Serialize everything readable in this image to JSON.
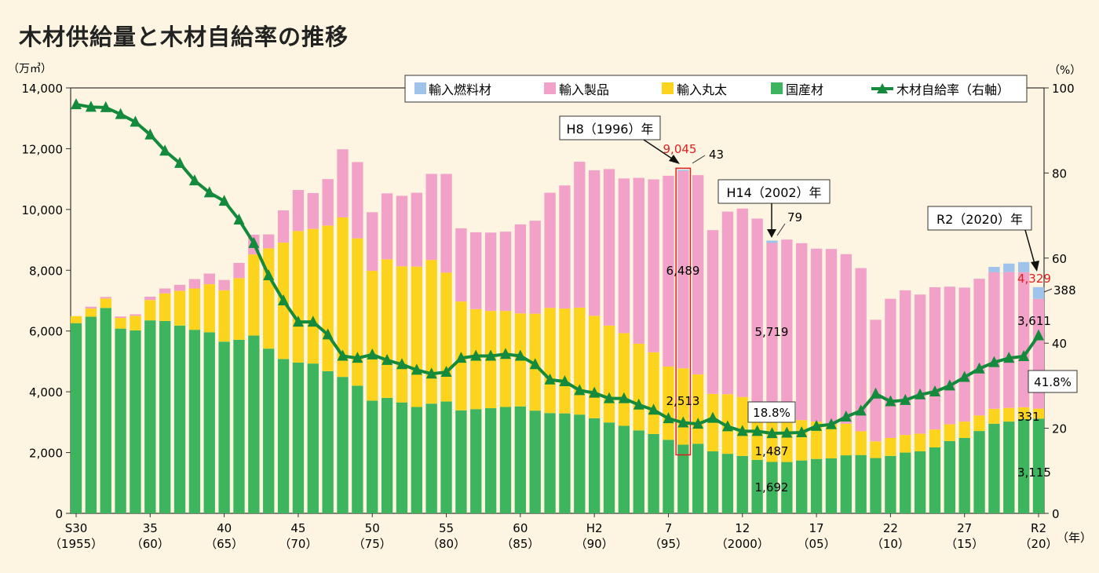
{
  "title": "木材供給量と木材自給率の推移",
  "chart_data": {
    "type": "bar",
    "title": "木材供給量と木材自給率の推移",
    "ylabel_left": "（万㎥）",
    "ylabel_right": "（%）",
    "xunit": "（年）",
    "ylim_left": [
      0,
      14000
    ],
    "ylim_right": [
      0,
      100
    ],
    "yticks_left": [
      "0",
      "2,000",
      "4,000",
      "6,000",
      "8,000",
      "10,000",
      "12,000",
      "14,000"
    ],
    "yticks_right": [
      "0",
      "20",
      "40",
      "60",
      "80",
      "100"
    ],
    "legend_position": "top-right",
    "legend": {
      "fuel": "輸入燃料材",
      "products": "輸入製品",
      "logs": "輸入丸太",
      "domestic": "国産材",
      "rate": "木材自給率（右軸）"
    },
    "colors": {
      "fuel": "#9fc3ea",
      "products": "#f2a2c8",
      "logs": "#fdd41d",
      "domestic": "#3db55e",
      "rate": "#138a3c",
      "highlight": "#e02020"
    },
    "years": [
      1955,
      1956,
      1957,
      1958,
      1959,
      1960,
      1961,
      1962,
      1963,
      1964,
      1965,
      1966,
      1967,
      1968,
      1969,
      1970,
      1971,
      1972,
      1973,
      1974,
      1975,
      1976,
      1977,
      1978,
      1979,
      1980,
      1981,
      1982,
      1983,
      1984,
      1985,
      1986,
      1987,
      1988,
      1989,
      1990,
      1991,
      1992,
      1993,
      1994,
      1995,
      1996,
      1997,
      1998,
      1999,
      2000,
      2001,
      2002,
      2003,
      2004,
      2005,
      2006,
      2007,
      2008,
      2009,
      2010,
      2011,
      2012,
      2013,
      2014,
      2015,
      2016,
      2017,
      2018,
      2019,
      2020
    ],
    "x_ticks": [
      {
        "year": 1955,
        "l1": "S30",
        "l2": "（1955）"
      },
      {
        "year": 1960,
        "l1": "35",
        "l2": "（60）"
      },
      {
        "year": 1965,
        "l1": "40",
        "l2": "（65）"
      },
      {
        "year": 1970,
        "l1": "45",
        "l2": "（70）"
      },
      {
        "year": 1975,
        "l1": "50",
        "l2": "（75）"
      },
      {
        "year": 1980,
        "l1": "55",
        "l2": "（80）"
      },
      {
        "year": 1985,
        "l1": "60",
        "l2": "（85）"
      },
      {
        "year": 1990,
        "l1": "H2",
        "l2": "（90）"
      },
      {
        "year": 1995,
        "l1": "7",
        "l2": "（95）"
      },
      {
        "year": 2000,
        "l1": "12",
        "l2": "（2000）"
      },
      {
        "year": 2005,
        "l1": "17",
        "l2": "（05）"
      },
      {
        "year": 2010,
        "l1": "22",
        "l2": "（10）"
      },
      {
        "year": 2015,
        "l1": "27",
        "l2": "（15）"
      },
      {
        "year": 2020,
        "l1": "R2",
        "l2": "（20）"
      }
    ],
    "series": [
      {
        "key": "domestic",
        "name": "国産材",
        "values": [
          6260,
          6470,
          6760,
          6080,
          6020,
          6350,
          6330,
          6180,
          6040,
          5960,
          5650,
          5710,
          5850,
          5420,
          5080,
          4960,
          4930,
          4680,
          4490,
          4200,
          3710,
          3800,
          3650,
          3500,
          3610,
          3680,
          3390,
          3430,
          3460,
          3500,
          3520,
          3380,
          3300,
          3290,
          3250,
          3130,
          2990,
          2880,
          2730,
          2610,
          2420,
          2260,
          2290,
          2040,
          1960,
          1890,
          1760,
          1692,
          1690,
          1740,
          1790,
          1810,
          1910,
          1920,
          1820,
          1890,
          2000,
          2040,
          2170,
          2380,
          2480,
          2710,
          2950,
          3020,
          3100,
          3115
        ]
      },
      {
        "key": "logs",
        "name": "輸入丸太",
        "values": [
          230,
          270,
          310,
          350,
          480,
          670,
          910,
          1140,
          1360,
          1580,
          1690,
          2030,
          2670,
          3300,
          3830,
          4330,
          4430,
          4790,
          5250,
          4850,
          4270,
          4560,
          4480,
          4620,
          4730,
          4240,
          3580,
          3290,
          3200,
          3160,
          3060,
          3190,
          3460,
          3450,
          3520,
          3370,
          3190,
          3050,
          2850,
          2690,
          2410,
          2513,
          2280,
          1890,
          1960,
          1940,
          1900,
          1487,
          1600,
          1330,
          1230,
          1120,
          1040,
          780,
          550,
          590,
          580,
          580,
          590,
          550,
          540,
          510,
          490,
          450,
          390,
          331
        ]
      },
      {
        "key": "products",
        "name": "輸入製品",
        "values": [
          0,
          60,
          50,
          50,
          50,
          110,
          160,
          200,
          310,
          350,
          340,
          500,
          650,
          460,
          1060,
          1350,
          1180,
          1530,
          2240,
          2510,
          1930,
          2170,
          2320,
          2430,
          2830,
          3250,
          2410,
          2530,
          2580,
          2610,
          2930,
          3060,
          3790,
          4050,
          4800,
          4790,
          5150,
          5090,
          5460,
          5690,
          6280,
          6489,
          6560,
          5390,
          6010,
          6200,
          6040,
          5719,
          5720,
          5820,
          5690,
          5770,
          5580,
          5370,
          4000,
          4580,
          4760,
          4580,
          4680,
          4530,
          4410,
          4500,
          4490,
          4470,
          4450,
          3611
        ]
      },
      {
        "key": "fuel",
        "name": "輸入燃料材",
        "values": [
          0,
          0,
          0,
          0,
          0,
          0,
          0,
          0,
          0,
          0,
          0,
          0,
          0,
          0,
          0,
          0,
          0,
          0,
          0,
          0,
          0,
          0,
          0,
          0,
          0,
          0,
          0,
          0,
          0,
          0,
          0,
          0,
          0,
          0,
          0,
          0,
          0,
          0,
          0,
          0,
          0,
          43,
          0,
          0,
          0,
          0,
          0,
          79,
          0,
          0,
          0,
          0,
          0,
          0,
          0,
          0,
          0,
          0,
          0,
          0,
          0,
          0,
          180,
          280,
          330,
          388
        ]
      }
    ],
    "rate": {
      "name": "木材自給率（右軸）",
      "values": [
        96.1,
        95.5,
        95.4,
        93.8,
        92.0,
        89.0,
        85.2,
        82.3,
        78.2,
        75.4,
        73.4,
        69.0,
        63.5,
        55.9,
        50.0,
        45.0,
        45.0,
        42.0,
        37.0,
        36.5,
        37.3,
        36.0,
        35.0,
        33.7,
        32.8,
        33.2,
        36.5,
        37.0,
        37.0,
        37.4,
        37.0,
        35.0,
        31.4,
        31.0,
        28.9,
        28.3,
        27.0,
        27.0,
        25.5,
        24.3,
        22.3,
        21.3,
        21.0,
        22.4,
        20.4,
        19.3,
        19.3,
        18.8,
        18.9,
        19.0,
        20.5,
        20.9,
        22.7,
        24.1,
        28.1,
        26.3,
        26.6,
        27.9,
        28.6,
        30.0,
        32.0,
        34.0,
        35.5,
        36.5,
        36.9,
        41.8
      ]
    },
    "annotations": {
      "h8_label": "H8（1996）年",
      "h8_total": "9,045",
      "h8_fuel": "43",
      "h8_products": "6,489",
      "h8_logs": "2,513",
      "h14_label": "H14（2002）年",
      "h14_fuel": "79",
      "h14_products": "5,719",
      "h14_logs": "1,487",
      "h14_domestic": "1,692",
      "h14_rate": "18.8%",
      "r2_label": "R2（2020）年",
      "r2_total": "4,329",
      "r2_fuel": "388",
      "r2_products": "3,611",
      "r2_logs": "331",
      "r2_domestic": "3,115",
      "r2_rate": "41.8%"
    }
  }
}
